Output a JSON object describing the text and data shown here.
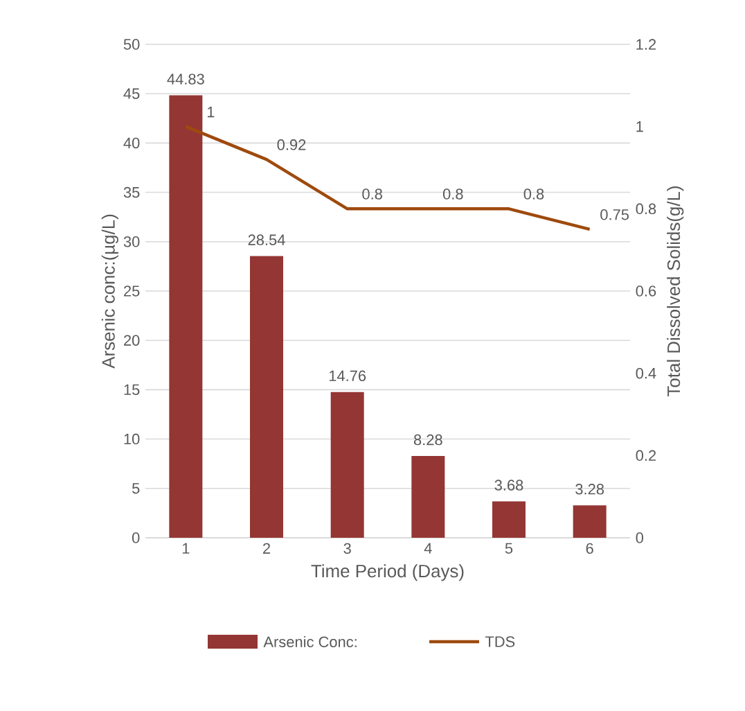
{
  "chart_data": {
    "type": "bar",
    "xlabel": "Time Period (Days)",
    "ylabel": "Arsenic conc:(µg/L)",
    "y2label": "Total Dissolved Solids(g/L)",
    "categories": [
      "1",
      "2",
      "3",
      "4",
      "5",
      "6"
    ],
    "series": [
      {
        "name": "Arsenic Conc:",
        "color": "#943634",
        "values": [
          44.83,
          28.54,
          14.76,
          8.28,
          3.68,
          3.28
        ]
      },
      {
        "name": "TDS",
        "type": "line",
        "axis": "y2",
        "color": "#9e4a0e",
        "values": [
          1,
          0.92,
          0.8,
          0.8,
          0.8,
          0.75
        ]
      }
    ],
    "ylim": [
      0,
      50
    ],
    "yticks": [
      0,
      5,
      10,
      15,
      20,
      25,
      30,
      35,
      40,
      45,
      50
    ],
    "y2lim": [
      0,
      1.2
    ],
    "y2ticks": [
      0,
      0.2,
      0.4,
      0.6,
      0.8,
      1,
      1.2
    ],
    "grid": "y",
    "legend": "bottom",
    "data_labels": true
  }
}
